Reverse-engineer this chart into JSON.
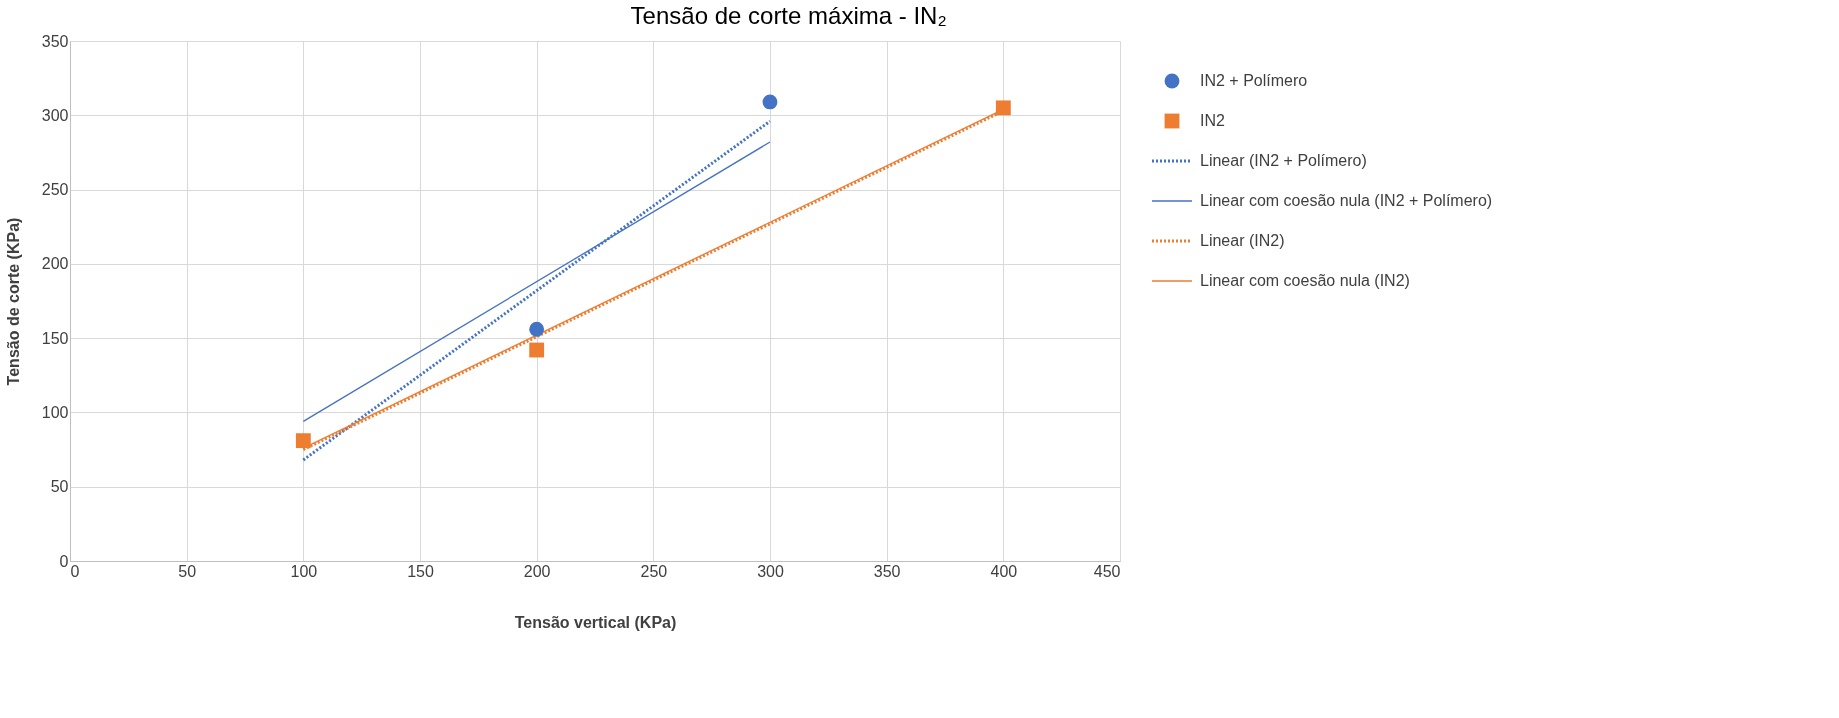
{
  "chart_data": {
    "type": "scatter",
    "title": "Tensão de corte máxima - IN₂",
    "xlabel": "Tensão vertical (KPa)",
    "ylabel": "Tensão de corte  (KPa)",
    "xlim": [
      0,
      450
    ],
    "xticks": [
      0,
      50,
      100,
      150,
      200,
      250,
      300,
      350,
      400,
      450
    ],
    "ylim": [
      0,
      350
    ],
    "yticks": [
      0,
      50,
      100,
      150,
      200,
      250,
      300,
      350
    ],
    "grid": true,
    "legend": "right",
    "series": [
      {
        "name": "IN2 + Polímero",
        "marker": "circle",
        "color": "#4472c4",
        "x": [
          200,
          300
        ],
        "values": [
          156,
          309
        ]
      },
      {
        "name": "IN2",
        "marker": "square",
        "color": "#ed7d31",
        "x": [
          100,
          200,
          400
        ],
        "values": [
          81,
          142,
          305
        ]
      },
      {
        "name": "Linear (IN2 + Polímero)",
        "type": "line",
        "line_style": "dotted",
        "color": "#4472c4",
        "x": [
          100,
          300
        ],
        "values": [
          68,
          296
        ]
      },
      {
        "name": "Linear com coesão nula (IN2 + Polímero)",
        "type": "line",
        "line_style": "solid",
        "color": "#4472c4",
        "x": [
          100,
          300
        ],
        "values": [
          94,
          282
        ]
      },
      {
        "name": "Linear (IN2)",
        "type": "line",
        "line_style": "dotted",
        "color": "#ed7d31",
        "x": [
          100,
          400
        ],
        "values": [
          75,
          303
        ]
      },
      {
        "name": "Linear com coesão nula (IN2)",
        "type": "line",
        "line_style": "solid",
        "color": "#ed7d31",
        "x": [
          100,
          400
        ],
        "values": [
          76,
          304
        ]
      }
    ]
  }
}
